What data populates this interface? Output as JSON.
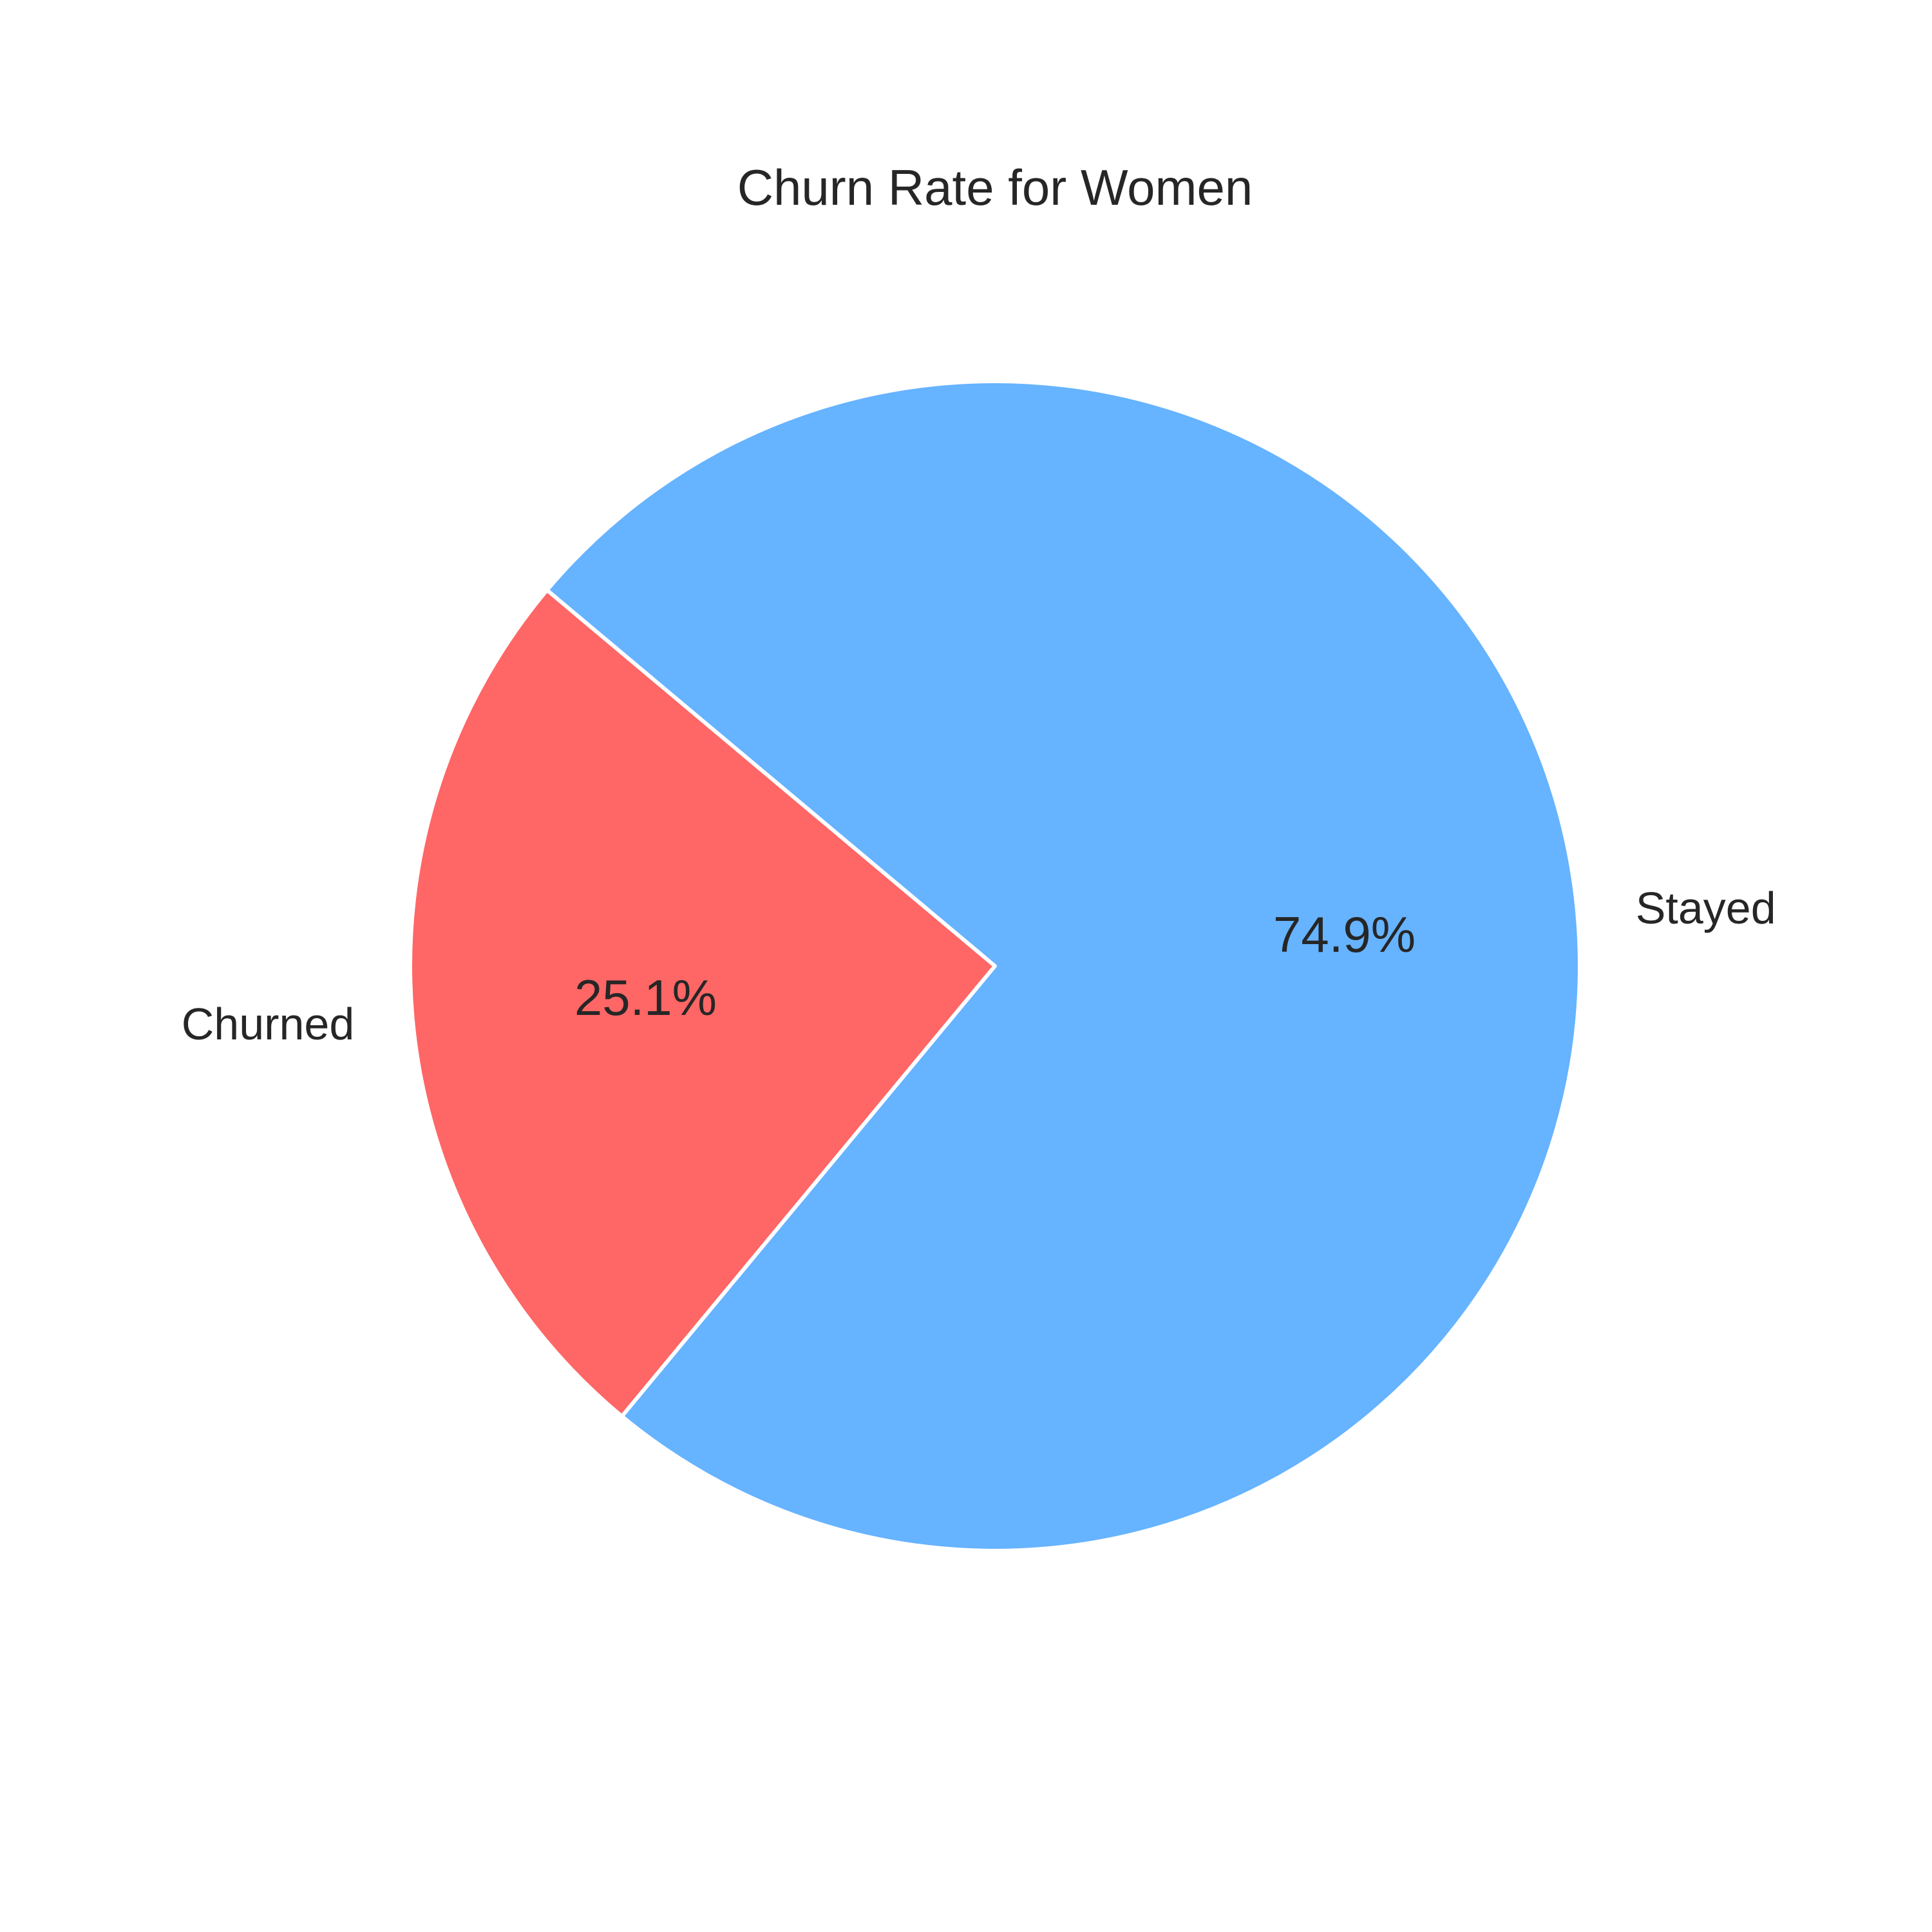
{
  "chart_data": {
    "type": "pie",
    "title": "Churn Rate for Women",
    "slices": [
      {
        "label": "Churned",
        "value": 25.1,
        "pct_label": "25.1%",
        "color": "#ff6666"
      },
      {
        "label": "Stayed",
        "value": 74.9,
        "pct_label": "74.9%",
        "color": "#66b3ff"
      }
    ],
    "start_angle_deg": 140,
    "direction": "counterclockwise",
    "edge_color": "#ffffff"
  }
}
